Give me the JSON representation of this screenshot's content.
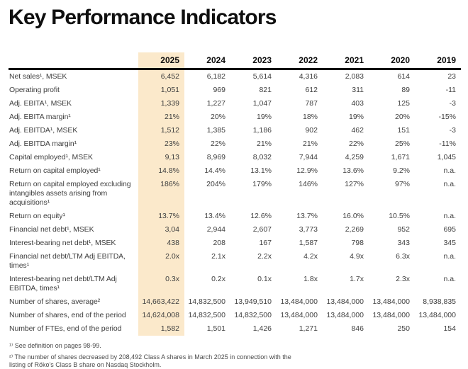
{
  "page": {
    "title": "Key Performance Indicators"
  },
  "table": {
    "highlight_color": "#FBE9CB",
    "years": [
      "2025",
      "2024",
      "2023",
      "2022",
      "2021",
      "2020",
      "2019"
    ],
    "rows": [
      {
        "label": "Net sales¹, MSEK",
        "values": [
          "6,452",
          "6,182",
          "5,614",
          "4,316",
          "2,083",
          "614",
          "23"
        ]
      },
      {
        "label": "Operating profit",
        "values": [
          "1,051",
          "969",
          "821",
          "612",
          "311",
          "89",
          "-11"
        ]
      },
      {
        "label": "Adj. EBITA¹, MSEK",
        "values": [
          "1,339",
          "1,227",
          "1,047",
          "787",
          "403",
          "125",
          "-3"
        ]
      },
      {
        "label": "Adj. EBITA margin¹",
        "values": [
          "21%",
          "20%",
          "19%",
          "18%",
          "19%",
          "20%",
          "-15%"
        ]
      },
      {
        "label": "Adj. EBITDA¹, MSEK",
        "values": [
          "1,512",
          "1,385",
          "1,186",
          "902",
          "462",
          "151",
          "-3"
        ]
      },
      {
        "label": "Adj. EBITDA margin¹",
        "values": [
          "23%",
          "22%",
          "21%",
          "21%",
          "22%",
          "25%",
          "-11%"
        ]
      },
      {
        "label": "Capital employed¹, MSEK",
        "values": [
          "9,13",
          "8,969",
          "8,032",
          "7,944",
          "4,259",
          "1,671",
          "1,045"
        ]
      },
      {
        "label": "Return on capital employed¹",
        "values": [
          "14.8%",
          "14.4%",
          "13.1%",
          "12.9%",
          "13.6%",
          "9.2%",
          "n.a."
        ]
      },
      {
        "label": "Return on capital employed excluding intangibles assets arising from acquisitions¹",
        "values": [
          "186%",
          "204%",
          "179%",
          "146%",
          "127%",
          "97%",
          "n.a."
        ]
      },
      {
        "label": "Return on equity¹",
        "values": [
          "13.7%",
          "13.4%",
          "12.6%",
          "13.7%",
          "16.0%",
          "10.5%",
          "n.a."
        ]
      },
      {
        "label": "Financial net debt¹, MSEK",
        "values": [
          "3,04",
          "2,944",
          "2,607",
          "3,773",
          "2,269",
          "952",
          "695"
        ]
      },
      {
        "label": "Interest-bearing net debt¹, MSEK",
        "values": [
          "438",
          "208",
          "167",
          "1,587",
          "798",
          "343",
          "345"
        ]
      },
      {
        "label": "Financial net debt/LTM Adj EBITDA, times¹",
        "values": [
          "2.0x",
          "2.1x",
          "2.2x",
          "4.2x",
          "4.9x",
          "6.3x",
          "n.a."
        ]
      },
      {
        "label": "Interest-bearing net debt/LTM Adj EBITDA, times¹",
        "values": [
          "0.3x",
          "0.2x",
          "0.1x",
          "1.8x",
          "1.7x",
          "2.3x",
          "n.a."
        ]
      },
      {
        "label": "Number of shares, average²",
        "values": [
          "14,663,422",
          "14,832,500",
          "13,949,510",
          "13,484,000",
          "13,484,000",
          "13,484,000",
          "8,938,835"
        ]
      },
      {
        "label": "Number of shares, end of the period",
        "values": [
          "14,624,008",
          "14,832,500",
          "14,832,500",
          "13,484,000",
          "13,484,000",
          "13,484,000",
          "13,484,000"
        ]
      },
      {
        "label": "Number of FTEs, end of the period",
        "values": [
          "1,582",
          "1,501",
          "1,426",
          "1,271",
          "846",
          "250",
          "154"
        ]
      }
    ]
  },
  "footnotes": [
    "¹⁾ See definition on pages 98-99.",
    "²⁾ The number of shares decreased by 208,492 Class A shares in March 2025 in connection with the listing of Röko's Class B share on Nasdaq Stockholm."
  ]
}
